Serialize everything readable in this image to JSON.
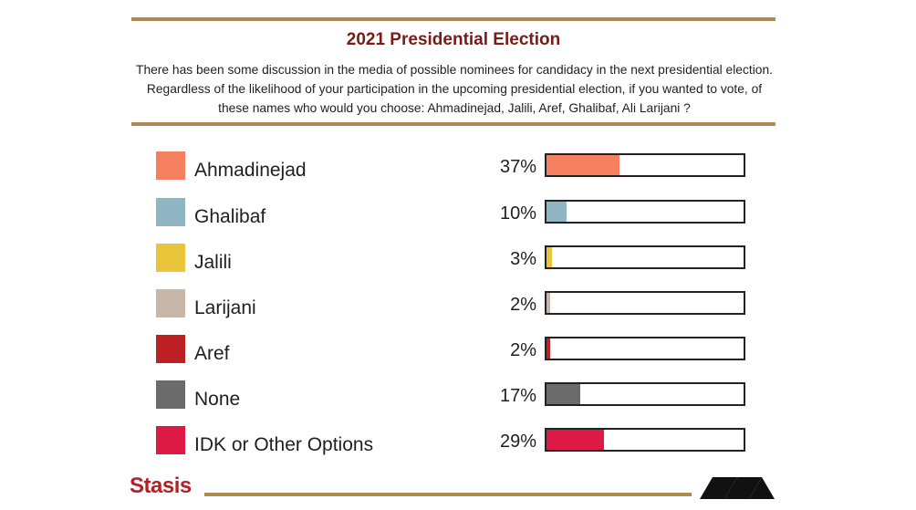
{
  "header": {
    "title": "2021 Presidential Election",
    "question": "There has been some discussion in the media of possible nominees for candidacy in the next presidential election. Regardless of the likelihood of your participation in the upcoming presidential election, if you wanted to vote, of these names who would you choose: Ahmadinejad, Jalili, Aref, Ghalibaf, Ali Larijani ?"
  },
  "chart_data": {
    "type": "bar",
    "orientation": "horizontal",
    "title": "2021 Presidential Election",
    "categories": [
      "Ahmadinejad",
      "Ghalibaf",
      "Jalili",
      "Larijani",
      "Aref",
      "None",
      "IDK or Other Options"
    ],
    "values": [
      37,
      10,
      3,
      2,
      2,
      17,
      29
    ],
    "value_labels": [
      "37%",
      "10%",
      "3%",
      "2%",
      "2%",
      "17%",
      "29%"
    ],
    "colors": [
      "#f4805f",
      "#8fb6c3",
      "#eac43a",
      "#c8b6a8",
      "#bd2025",
      "#6b6b6b",
      "#dc1a45"
    ],
    "xlim": [
      0,
      100
    ],
    "legend": "left"
  },
  "footer": {
    "brand": "Stasis",
    "brand_color": "#b52026",
    "rule_color": "#b08a55"
  }
}
